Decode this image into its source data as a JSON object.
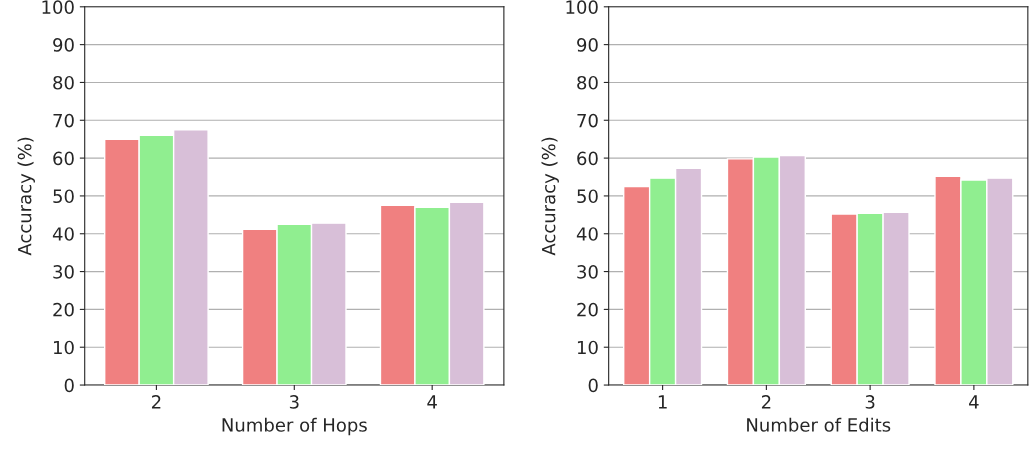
{
  "chart_data": [
    {
      "type": "bar",
      "xlabel": "Number of Hops",
      "ylabel": "Accuracy (%)",
      "categories": [
        "2",
        "3",
        "4"
      ],
      "series": [
        {
          "color": "#f08080",
          "values": [
            65,
            41.2,
            47.5
          ]
        },
        {
          "color": "#90ee90",
          "values": [
            66,
            42.5,
            47
          ]
        },
        {
          "color": "#d8bfd8",
          "values": [
            67.5,
            42.8,
            48.3
          ]
        }
      ],
      "ylim": [
        0,
        100
      ],
      "yticks": [
        0,
        10,
        20,
        30,
        40,
        50,
        60,
        70,
        80,
        90,
        100
      ],
      "grid": "y"
    },
    {
      "type": "bar",
      "xlabel": "Number of Edits",
      "ylabel": "Accuracy (%)",
      "categories": [
        "1",
        "2",
        "3",
        "4"
      ],
      "series": [
        {
          "color": "#f08080",
          "values": [
            52.5,
            59.8,
            45.2,
            55.2
          ]
        },
        {
          "color": "#90ee90",
          "values": [
            54.7,
            60.3,
            45.4,
            54.2
          ]
        },
        {
          "color": "#d8bfd8",
          "values": [
            57.3,
            60.7,
            45.7,
            54.7
          ]
        }
      ],
      "ylim": [
        0,
        100
      ],
      "yticks": [
        0,
        10,
        20,
        30,
        40,
        50,
        60,
        70,
        80,
        90,
        100
      ],
      "grid": "y"
    }
  ]
}
